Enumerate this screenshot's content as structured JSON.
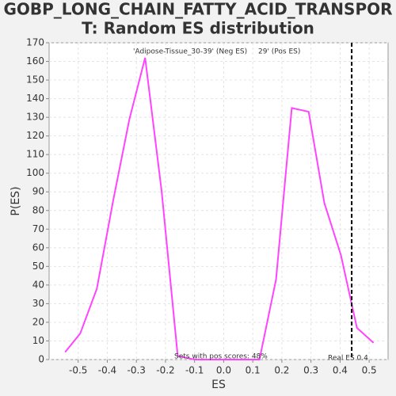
{
  "chart_data": {
    "type": "line",
    "title": [
      "GOBP_LONG_CHAIN_FATTY_ACID_TRANSPOR",
      "T: Random ES distribution"
    ],
    "x_label": "ES",
    "y_label": "P(ES)",
    "legend": [
      {
        "text": "'Adipose-Tissue_30-39' (Neg ES)",
        "color": "#0000cc"
      },
      {
        "text": "29' (Pos ES)",
        "color": "#ff0000"
      }
    ],
    "annotations": [
      "Sets with pos scores: 48%",
      "Real ES 0.4"
    ],
    "real_es": 0.44,
    "x": [
      -0.545,
      -0.493,
      -0.436,
      -0.379,
      -0.324,
      -0.27,
      -0.213,
      -0.158,
      -0.1,
      -0.044,
      0.012,
      0.068,
      0.123,
      0.18,
      0.234,
      0.292,
      0.346,
      0.403,
      0.458,
      0.515
    ],
    "series": [
      {
        "name": "P(ES)",
        "color": "#ff44ff",
        "values": [
          4,
          14,
          38,
          86,
          129,
          162,
          90,
          2,
          0,
          0,
          0,
          0,
          0,
          43,
          135,
          133,
          84,
          56,
          17,
          9
        ]
      }
    ],
    "xlim": [
      -0.6,
      0.565
    ],
    "ylim": [
      0,
      170
    ],
    "xticks": [
      -0.5,
      -0.4,
      -0.3,
      -0.2,
      -0.1,
      {
        "value": 0,
        "label": "0.0"
      },
      0.1,
      0.2,
      0.3,
      0.4,
      0.5
    ],
    "yticks": [
      0,
      10,
      20,
      30,
      40,
      50,
      60,
      70,
      80,
      90,
      100,
      110,
      120,
      130,
      140,
      150,
      160,
      170
    ],
    "grid": true
  }
}
